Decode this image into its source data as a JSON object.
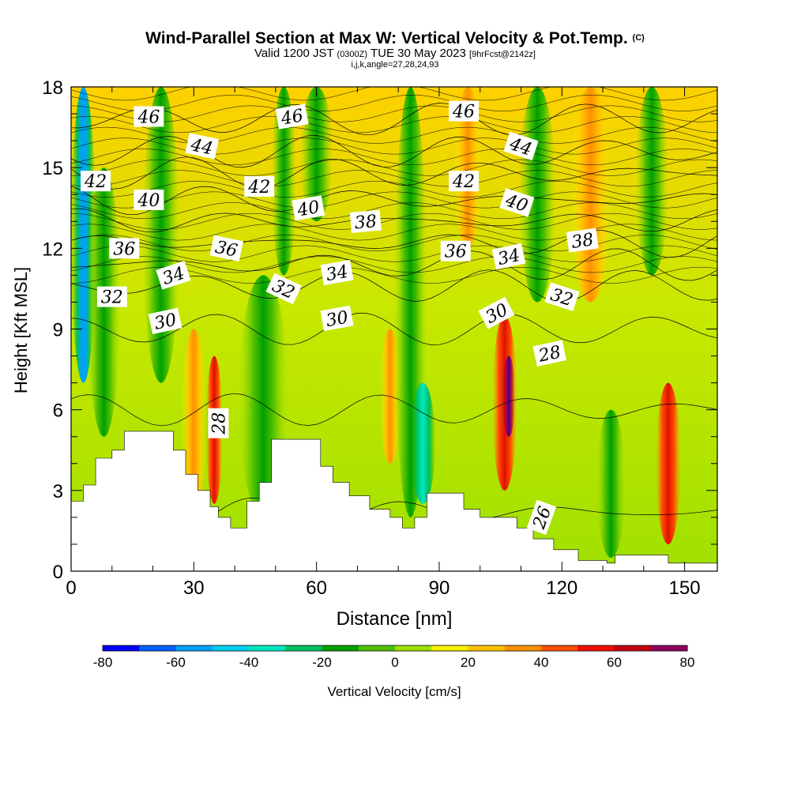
{
  "header": {
    "title": "Wind-Parallel Section at Max W: Vertical Velocity & Pot.Temp.",
    "copyright": "(C)",
    "valid_prefix": "Valid 1200 JST",
    "valid_utc": "(0300Z)",
    "valid_date": "TUE 30 May 2023",
    "forecast": "[9hrFcst@2142z]",
    "params": "i,j,k,angle=27,28,24,93"
  },
  "chart_data": {
    "type": "heatmap",
    "xlabel": "Distance [nm]",
    "ylabel": "Height [Kft MSL]",
    "xlim": [
      0,
      158
    ],
    "ylim": [
      0,
      18
    ],
    "x_ticks": [
      "0",
      "30",
      "60",
      "90",
      "120",
      "150"
    ],
    "y_ticks": [
      "0",
      "3",
      "6",
      "9",
      "12",
      "15",
      "18"
    ],
    "colorbar": {
      "label": "Vertical Velocity [cm/s]",
      "tick_labels": [
        "-80",
        "-60",
        "-40",
        "-20",
        "0",
        "20",
        "40",
        "60",
        "80"
      ],
      "levels": [
        -80,
        -70,
        -60,
        -50,
        -40,
        -30,
        -20,
        -10,
        0,
        10,
        20,
        30,
        40,
        50,
        60,
        70,
        80
      ],
      "colors": [
        "#0000ff",
        "#0060ff",
        "#00a0ff",
        "#00d0f0",
        "#00e8c0",
        "#00c060",
        "#00a000",
        "#50c000",
        "#a0e000",
        "#f8f000",
        "#ffc000",
        "#ff9000",
        "#ff5000",
        "#f01000",
        "#c00010",
        "#900060",
        "#500080"
      ]
    },
    "velocity_columns": [
      {
        "x": 3,
        "w": 6,
        "kind": "blue",
        "top": 18,
        "bottom": 7
      },
      {
        "x": 8,
        "w": 8,
        "kind": "green",
        "top": 15,
        "bottom": 5
      },
      {
        "x": 22,
        "w": 9,
        "kind": "green",
        "top": 18,
        "bottom": 7
      },
      {
        "x": 30,
        "w": 6,
        "kind": "orange",
        "top": 9,
        "bottom": 2
      },
      {
        "x": 35,
        "w": 4,
        "kind": "red",
        "top": 8,
        "bottom": 2.5
      },
      {
        "x": 47,
        "w": 12,
        "kind": "green",
        "top": 11,
        "bottom": 2
      },
      {
        "x": 52,
        "w": 6,
        "kind": "green",
        "top": 18,
        "bottom": 11
      },
      {
        "x": 60,
        "w": 8,
        "kind": "green",
        "top": 18,
        "bottom": 13
      },
      {
        "x": 78,
        "w": 5,
        "kind": "orange",
        "top": 9,
        "bottom": 4
      },
      {
        "x": 83,
        "w": 8,
        "kind": "green",
        "top": 18,
        "bottom": 2
      },
      {
        "x": 86,
        "w": 6,
        "kind": "cyan",
        "top": 7,
        "bottom": 2.5
      },
      {
        "x": 97,
        "w": 7,
        "kind": "orange",
        "top": 18,
        "bottom": 12
      },
      {
        "x": 106,
        "w": 6,
        "kind": "red",
        "top": 9.5,
        "bottom": 3
      },
      {
        "x": 107,
        "w": 3,
        "kind": "purple",
        "top": 8,
        "bottom": 5
      },
      {
        "x": 114,
        "w": 9,
        "kind": "green",
        "top": 18,
        "bottom": 10
      },
      {
        "x": 127,
        "w": 10,
        "kind": "orange",
        "top": 18,
        "bottom": 10
      },
      {
        "x": 132,
        "w": 7,
        "kind": "green",
        "top": 6,
        "bottom": 0.5
      },
      {
        "x": 142,
        "w": 8,
        "kind": "green",
        "top": 18,
        "bottom": 11
      },
      {
        "x": 146,
        "w": 6,
        "kind": "red",
        "top": 7,
        "bottom": 1
      }
    ],
    "terrain": [
      [
        0,
        2.6
      ],
      [
        3,
        3.2
      ],
      [
        6,
        4.2
      ],
      [
        10,
        4.5
      ],
      [
        13,
        5.2
      ],
      [
        22,
        5.2
      ],
      [
        25,
        4.5
      ],
      [
        28,
        3.6
      ],
      [
        31,
        3.0
      ],
      [
        34,
        2.4
      ],
      [
        36,
        2.0
      ],
      [
        39,
        1.6
      ],
      [
        43,
        2.6
      ],
      [
        46,
        3.3
      ],
      [
        49,
        4.9
      ],
      [
        58,
        4.9
      ],
      [
        61,
        3.9
      ],
      [
        64,
        3.3
      ],
      [
        68,
        2.8
      ],
      [
        73,
        2.3
      ],
      [
        78,
        2.0
      ],
      [
        81,
        1.6
      ],
      [
        84,
        2.0
      ],
      [
        87,
        2.9
      ],
      [
        93,
        2.9
      ],
      [
        96,
        2.3
      ],
      [
        100,
        2.0
      ],
      [
        106,
        2.0
      ],
      [
        109,
        1.6
      ],
      [
        113,
        1.2
      ],
      [
        118,
        0.8
      ],
      [
        124,
        0.4
      ],
      [
        131,
        0.3
      ],
      [
        133,
        0.6
      ],
      [
        142,
        0.6
      ],
      [
        146,
        0.3
      ],
      [
        158,
        0.3
      ]
    ],
    "theta_contours": [
      {
        "label": "26",
        "base": 2.2,
        "label_x": 115,
        "label_y": 2.0
      },
      {
        "label": "28",
        "base": 6.0,
        "label_x": 36,
        "label_y": 5.5
      },
      {
        "label": "30",
        "base": 9.0,
        "label_x": 23,
        "label_y": 9.3
      },
      {
        "label": "32",
        "base": 10.6,
        "label_x": 10,
        "label_y": 10.2
      },
      {
        "label": "34",
        "base": 11.4,
        "label_x": 25,
        "label_y": 11.0
      },
      {
        "label": "36",
        "base": 12.2,
        "label_x": 13,
        "label_y": 12.0
      },
      {
        "label": "38",
        "base": 13.0,
        "label_x": 72,
        "label_y": 13.0
      },
      {
        "label": "40",
        "base": 13.8,
        "label_x": 19,
        "label_y": 13.8
      },
      {
        "label": "42",
        "base": 14.8,
        "label_x": 6,
        "label_y": 14.5
      },
      {
        "label": "44",
        "base": 15.6,
        "label_x": 32,
        "label_y": 15.8
      },
      {
        "label": "46",
        "base": 16.8,
        "label_x": 19,
        "label_y": 16.9
      }
    ],
    "contour_labels": [
      {
        "text": "46",
        "x": 19,
        "y": 16.9,
        "angle": 0
      },
      {
        "text": "46",
        "x": 54,
        "y": 16.9,
        "angle": -10
      },
      {
        "text": "46",
        "x": 96,
        "y": 17.1,
        "angle": 0
      },
      {
        "text": "44",
        "x": 32,
        "y": 15.8,
        "angle": 12
      },
      {
        "text": "44",
        "x": 110,
        "y": 15.8,
        "angle": 18
      },
      {
        "text": "42",
        "x": 6,
        "y": 14.5,
        "angle": 0
      },
      {
        "text": "42",
        "x": 46,
        "y": 14.3,
        "angle": 0
      },
      {
        "text": "42",
        "x": 96,
        "y": 14.5,
        "angle": 0
      },
      {
        "text": "40",
        "x": 19,
        "y": 13.8,
        "angle": 0
      },
      {
        "text": "40",
        "x": 58,
        "y": 13.5,
        "angle": -10
      },
      {
        "text": "40",
        "x": 109,
        "y": 13.7,
        "angle": 18
      },
      {
        "text": "38",
        "x": 72,
        "y": 13.0,
        "angle": -5
      },
      {
        "text": "38",
        "x": 125,
        "y": 12.3,
        "angle": -8
      },
      {
        "text": "36",
        "x": 13,
        "y": 12.0,
        "angle": 0
      },
      {
        "text": "36",
        "x": 38,
        "y": 12.0,
        "angle": 12
      },
      {
        "text": "36",
        "x": 94,
        "y": 11.9,
        "angle": 0
      },
      {
        "text": "34",
        "x": 25,
        "y": 11.0,
        "angle": -18
      },
      {
        "text": "34",
        "x": 65,
        "y": 11.1,
        "angle": -10
      },
      {
        "text": "34",
        "x": 107,
        "y": 11.7,
        "angle": -12
      },
      {
        "text": "32",
        "x": 10,
        "y": 10.2,
        "angle": 0
      },
      {
        "text": "32",
        "x": 52,
        "y": 10.5,
        "angle": 25
      },
      {
        "text": "32",
        "x": 120,
        "y": 10.2,
        "angle": 18
      },
      {
        "text": "30",
        "x": 23,
        "y": 9.3,
        "angle": -12
      },
      {
        "text": "30",
        "x": 65,
        "y": 9.4,
        "angle": -10
      },
      {
        "text": "30",
        "x": 104,
        "y": 9.6,
        "angle": -28
      },
      {
        "text": "28",
        "x": 36,
        "y": 5.5,
        "angle": -90
      },
      {
        "text": "28",
        "x": 117,
        "y": 8.1,
        "angle": -12
      },
      {
        "text": "26",
        "x": 115,
        "y": 2.0,
        "angle": -70
      }
    ]
  }
}
